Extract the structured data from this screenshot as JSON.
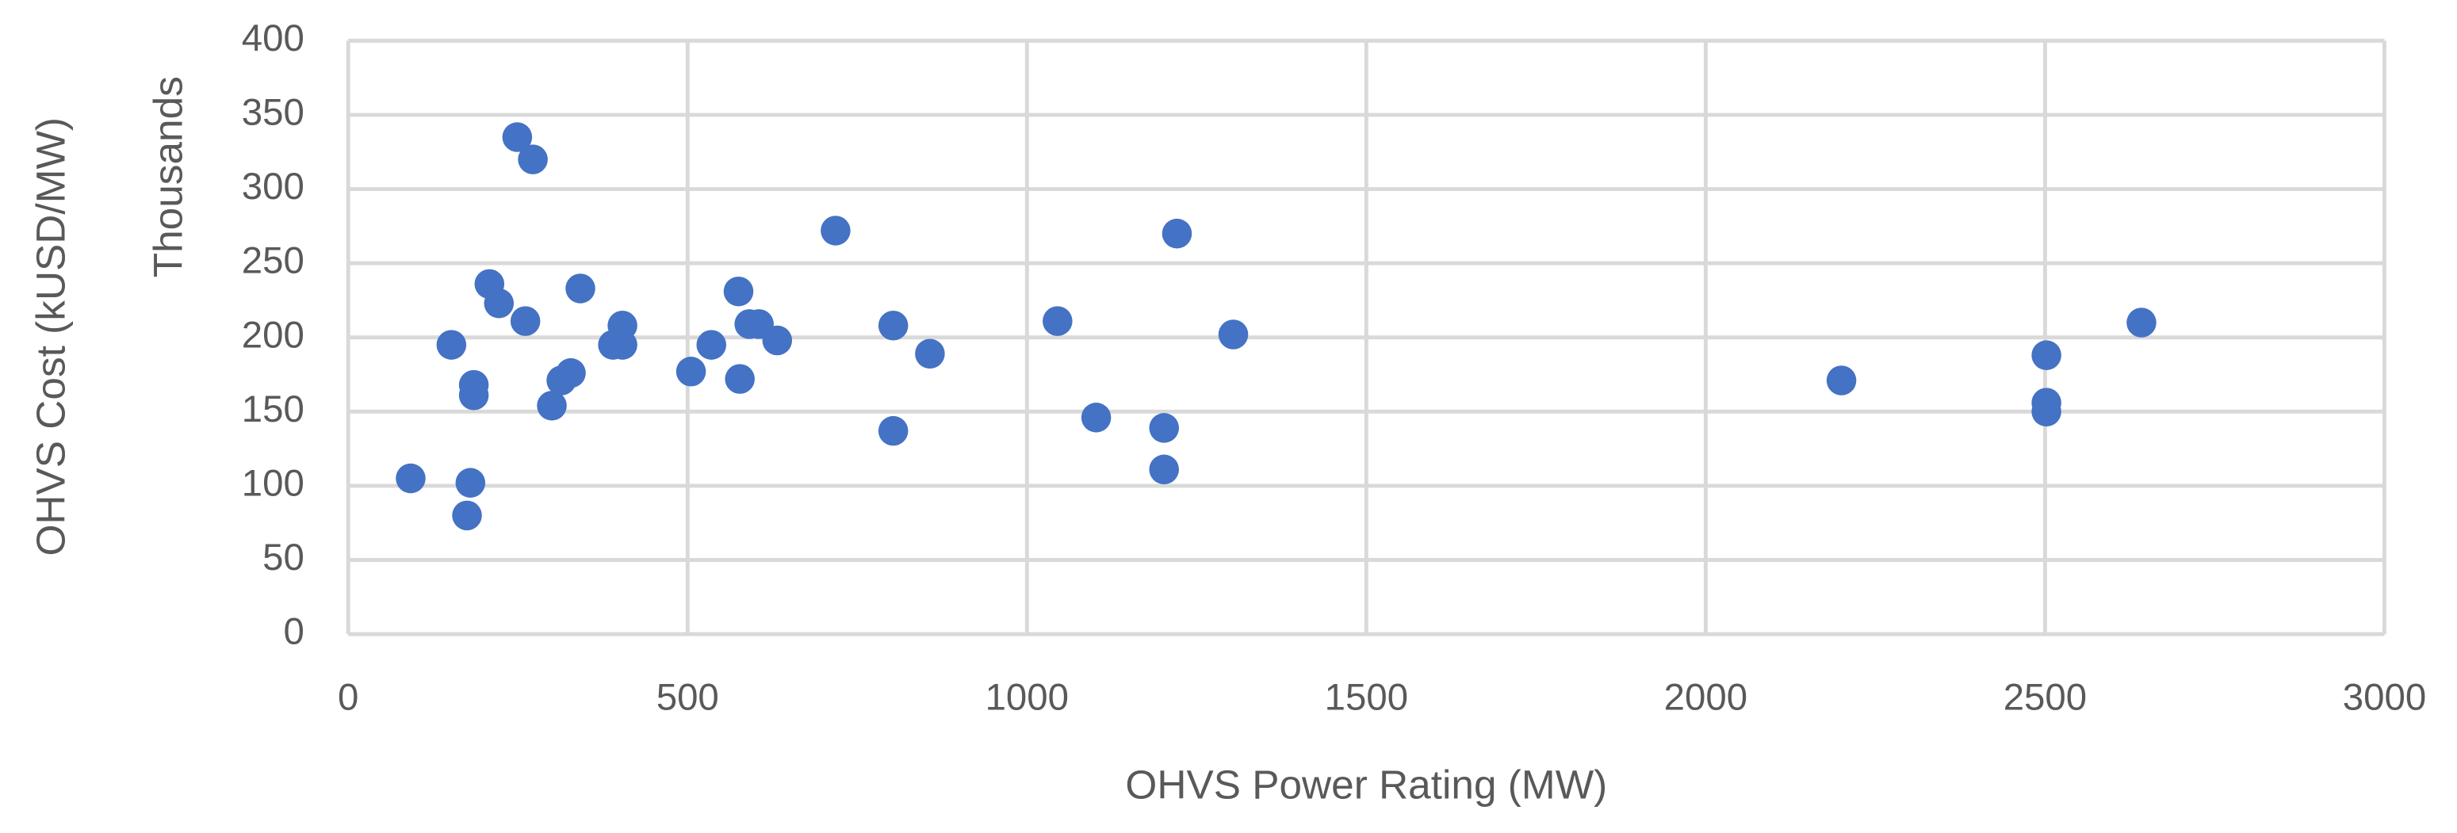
{
  "chart_data": {
    "type": "scatter",
    "x_label": "OHVS Power Rating (MW)",
    "y_label": "OHVS Cost (kUSD/MW)",
    "y_unit_label": "Thousands",
    "color": "#4472c4",
    "grid": true,
    "x": [
      92,
      175,
      180,
      185,
      185,
      152,
      208,
      222,
      249,
      272,
      261,
      300,
      314,
      328,
      342,
      390,
      404,
      404,
      505,
      535,
      575,
      577,
      591,
      605,
      632,
      718,
      803,
      803,
      857,
      1045,
      1102,
      1202,
      1202,
      1221,
      1304,
      2200,
      2502,
      2502,
      2502,
      2642
    ],
    "values": [
      105,
      80,
      102,
      168,
      161,
      195,
      236,
      223,
      335,
      320,
      211,
      154,
      171,
      176,
      233,
      195,
      195,
      208,
      177,
      195,
      231,
      172,
      209,
      209,
      198,
      272,
      208,
      137,
      189,
      211,
      146,
      139,
      111,
      270,
      202,
      171,
      188,
      156,
      150,
      210
    ],
    "xlim": [
      0,
      3000
    ],
    "xticks": [
      0,
      500,
      1000,
      1500,
      2000,
      2500,
      3000
    ],
    "ylim": [
      0,
      400
    ],
    "yticks": [
      0,
      50,
      100,
      150,
      200,
      250,
      300,
      350,
      400
    ]
  }
}
